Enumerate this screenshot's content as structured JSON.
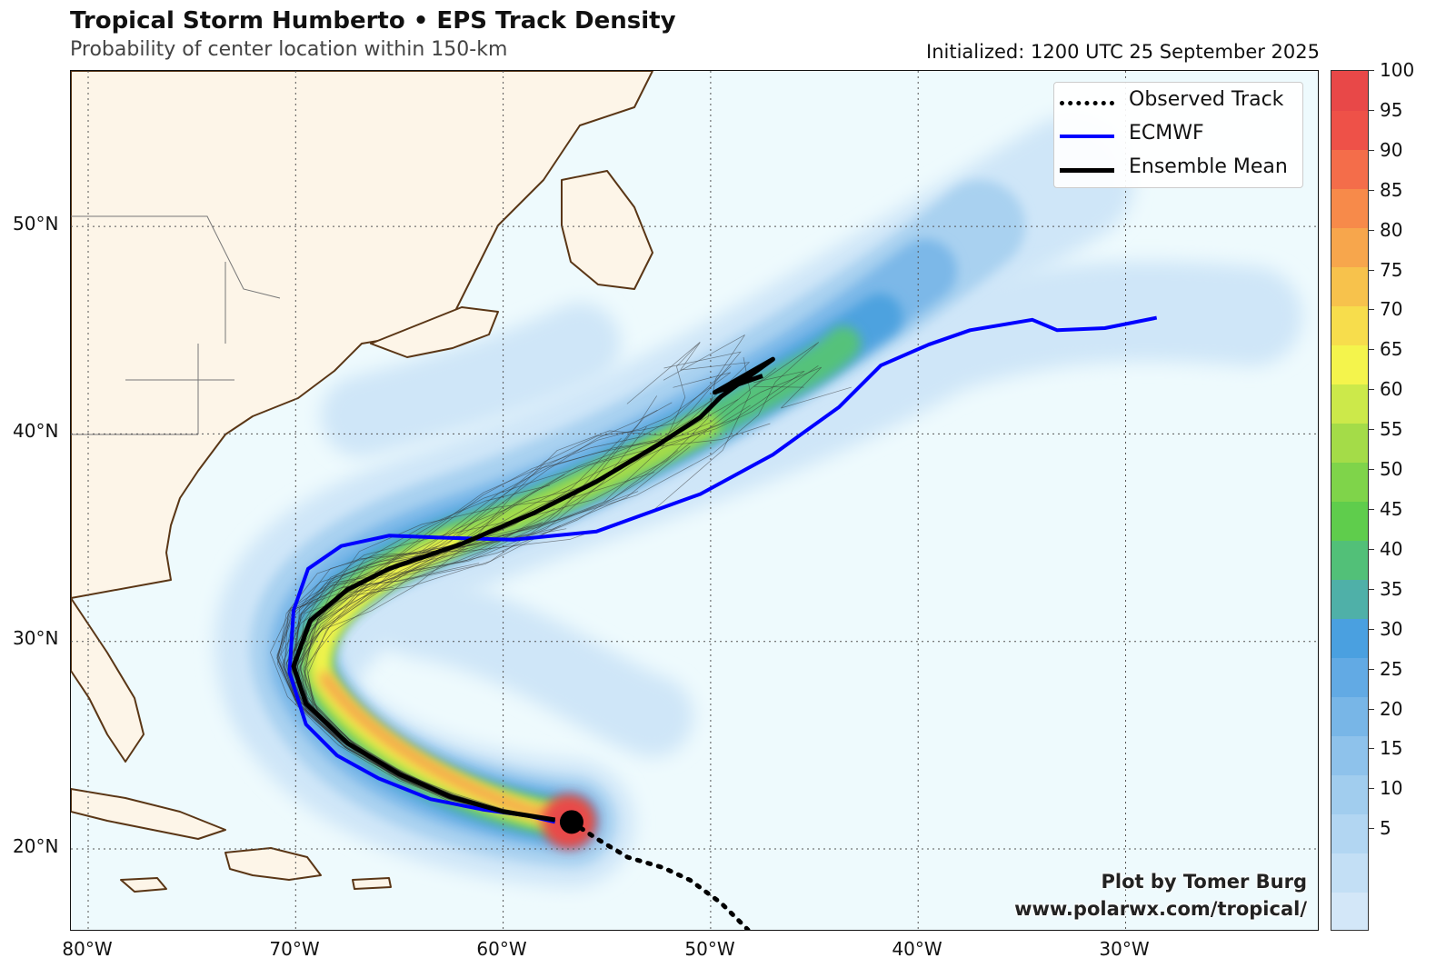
{
  "header": {
    "title": "Tropical Storm Humberto • EPS Track Density",
    "subtitle": "Probability of center location within 150-km",
    "initialized": "Initialized: 1200 UTC 25 September 2025"
  },
  "map": {
    "lat_labels": [
      "50°N",
      "40°N",
      "30°N",
      "20°N"
    ],
    "lon_labels": [
      "80°W",
      "70°W",
      "60°W",
      "50°W",
      "40°W",
      "30°W"
    ],
    "lat_values": [
      50,
      40,
      30,
      20
    ],
    "lon_values": [
      -80,
      -70,
      -60,
      -50,
      -40,
      -30
    ],
    "colors": {
      "ocean": "#eefafd",
      "land": "#fdf5e8",
      "coast": "#5a3616",
      "grid": "#555555"
    },
    "storm_position": {
      "lon": -56.7,
      "lat": 21.3
    },
    "observed_track": [
      [
        -56.7,
        21.3
      ],
      [
        -55.5,
        20.5
      ],
      [
        -54.0,
        19.6
      ],
      [
        -52.3,
        19.1
      ],
      [
        -51.0,
        18.5
      ],
      [
        -49.5,
        17.4
      ],
      [
        -48.2,
        16.1
      ]
    ],
    "ecmwf_track": [
      [
        -57.5,
        21.3
      ],
      [
        -58.8,
        21.6
      ],
      [
        -61.0,
        21.9
      ],
      [
        -63.5,
        22.4
      ],
      [
        -66.0,
        23.4
      ],
      [
        -68.0,
        24.5
      ],
      [
        -69.5,
        26.0
      ],
      [
        -70.3,
        28.5
      ],
      [
        -70.1,
        31.5
      ],
      [
        -69.4,
        33.5
      ],
      [
        -67.8,
        34.6
      ],
      [
        -65.5,
        35.1
      ],
      [
        -63.0,
        35.0
      ],
      [
        -59.5,
        34.9
      ],
      [
        -55.5,
        35.3
      ],
      [
        -50.5,
        37.1
      ],
      [
        -47.0,
        39.0
      ],
      [
        -43.8,
        41.3
      ],
      [
        -41.8,
        43.3
      ],
      [
        -39.5,
        44.3
      ],
      [
        -37.5,
        45.0
      ],
      [
        -34.5,
        45.5
      ],
      [
        -33.3,
        45.0
      ],
      [
        -31.0,
        45.1
      ],
      [
        -28.5,
        45.6
      ]
    ],
    "mean_track": [
      [
        -57.5,
        21.4
      ],
      [
        -60.0,
        21.8
      ],
      [
        -62.5,
        22.5
      ],
      [
        -65.0,
        23.6
      ],
      [
        -67.5,
        25.1
      ],
      [
        -69.5,
        27.0
      ],
      [
        -70.1,
        28.8
      ],
      [
        -69.3,
        31.0
      ],
      [
        -67.5,
        32.5
      ],
      [
        -65.5,
        33.5
      ],
      [
        -62.0,
        34.7
      ],
      [
        -58.5,
        36.2
      ],
      [
        -55.5,
        37.7
      ],
      [
        -52.5,
        39.5
      ],
      [
        -50.5,
        40.8
      ],
      [
        -49.5,
        41.8
      ],
      [
        -47.0,
        43.6
      ],
      [
        -49.8,
        42.0
      ],
      [
        -47.5,
        42.8
      ]
    ]
  },
  "legend": {
    "items": [
      {
        "label": "Observed Track",
        "style": "dotted",
        "color": "#000000"
      },
      {
        "label": "ECMWF",
        "style": "solid",
        "color": "#0000ff"
      },
      {
        "label": "Ensemble Mean",
        "style": "solid",
        "color": "#000000"
      }
    ]
  },
  "credit": {
    "line1": "Plot by Tomer Burg",
    "line2": "www.polarwx.com/tropical/"
  },
  "colorbar": {
    "labels": [
      "100",
      "95",
      "90",
      "85",
      "80",
      "75",
      "70",
      "65",
      "60",
      "55",
      "50",
      "45",
      "40",
      "35",
      "30",
      "25",
      "20",
      "15",
      "10",
      "5"
    ],
    "colors": [
      "#d3e7f8",
      "#c3dff5",
      "#b2d6f2",
      "#a1cdee",
      "#8ec2eb",
      "#78b6e7",
      "#62aae4",
      "#4aa0e0",
      "#4fb0a8",
      "#52c078",
      "#5fcd4c",
      "#7fd44a",
      "#a4dc48",
      "#cce94a",
      "#f4f44c",
      "#f7dd4c",
      "#f7c24c",
      "#f7a64c",
      "#f78a4a",
      "#f46d4a",
      "#ee5148",
      "#e84848"
    ]
  }
}
